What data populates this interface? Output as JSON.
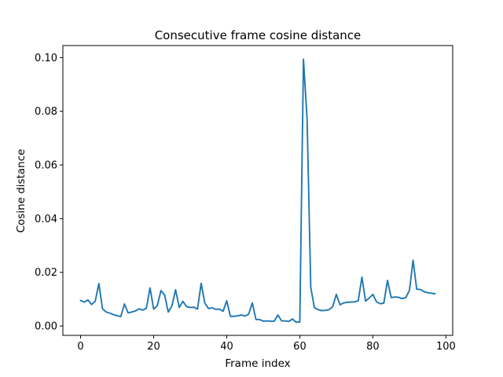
{
  "chart_data": {
    "type": "line",
    "title": "Consecutive frame cosine distance",
    "xlabel": "Frame index",
    "ylabel": "Cosine distance",
    "xlim": [
      -4.85,
      101.85
    ],
    "ylim": [
      -0.0035,
      0.1045
    ],
    "x_ticks": [
      0,
      20,
      40,
      60,
      80,
      100
    ],
    "x_tick_labels": [
      "0",
      "20",
      "40",
      "60",
      "80",
      "100"
    ],
    "y_ticks": [
      0.0,
      0.02,
      0.04,
      0.06,
      0.08,
      0.1
    ],
    "y_tick_labels": [
      "0.00",
      "0.02",
      "0.04",
      "0.06",
      "0.08",
      "0.10"
    ],
    "grid": false,
    "legend": "none",
    "line_color": "#1f77b4",
    "series": [
      {
        "x": [
          0,
          1,
          2,
          3,
          4,
          5,
          6,
          7,
          8,
          9,
          10,
          11,
          12,
          13,
          14,
          15,
          16,
          17,
          18,
          19,
          20,
          21,
          22,
          23,
          24,
          25,
          26,
          27,
          28,
          29,
          30,
          31,
          32,
          33,
          34,
          35,
          36,
          37,
          38,
          39,
          40,
          41,
          42,
          43,
          44,
          45,
          46,
          47,
          48,
          49,
          50,
          51,
          52,
          53,
          54,
          55,
          56,
          57,
          58,
          59,
          60,
          61,
          62,
          63,
          64,
          65,
          66,
          67,
          68,
          69,
          70,
          71,
          72,
          73,
          74,
          75,
          76,
          77,
          78,
          79,
          80,
          81,
          82,
          83,
          84,
          85,
          86,
          87,
          88,
          89,
          90,
          91,
          92,
          93,
          94,
          95,
          96,
          97
        ],
        "values": [
          0.0095,
          0.0089,
          0.0097,
          0.008,
          0.0092,
          0.0158,
          0.0064,
          0.0052,
          0.0048,
          0.0042,
          0.0038,
          0.0035,
          0.0082,
          0.0049,
          0.0052,
          0.0056,
          0.0064,
          0.0059,
          0.0066,
          0.0142,
          0.0063,
          0.0076,
          0.0132,
          0.0115,
          0.0052,
          0.0075,
          0.0135,
          0.0069,
          0.0092,
          0.0072,
          0.0069,
          0.007,
          0.0063,
          0.0159,
          0.0085,
          0.0065,
          0.0068,
          0.0062,
          0.0063,
          0.0055,
          0.0094,
          0.0036,
          0.0036,
          0.0038,
          0.0041,
          0.0037,
          0.0044,
          0.0086,
          0.0024,
          0.0024,
          0.0018,
          0.0019,
          0.0018,
          0.0018,
          0.0041,
          0.0019,
          0.0019,
          0.0017,
          0.0026,
          0.0014,
          0.0015,
          0.0994,
          0.077,
          0.0144,
          0.0068,
          0.0061,
          0.0057,
          0.0058,
          0.0061,
          0.0072,
          0.0118,
          0.0079,
          0.0086,
          0.0088,
          0.0089,
          0.009,
          0.0094,
          0.0182,
          0.0093,
          0.0104,
          0.0118,
          0.009,
          0.0083,
          0.0085,
          0.017,
          0.0106,
          0.0108,
          0.0107,
          0.0102,
          0.0106,
          0.0132,
          0.0245,
          0.0137,
          0.0136,
          0.0128,
          0.0124,
          0.0122,
          0.012
        ]
      }
    ]
  }
}
